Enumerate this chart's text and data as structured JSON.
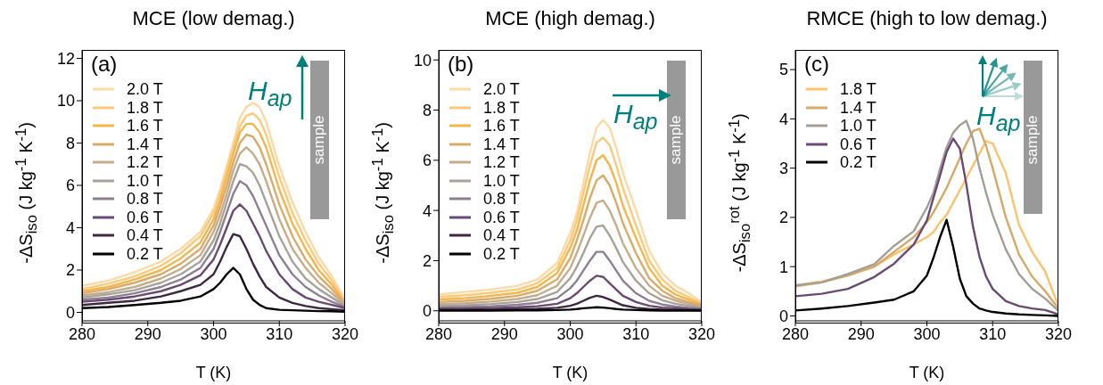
{
  "chart_data": [
    {
      "type": "line",
      "title": "MCE (low demag.)",
      "xlabel": "T (K)",
      "ylabel": "-ΔS$_{iso}$ (J kg$^{-1}$ K$^{-1}$)",
      "x": [
        280,
        284,
        288,
        292,
        295,
        298,
        300,
        301,
        302,
        303,
        304,
        305,
        306,
        307,
        308,
        310,
        312,
        314,
        316,
        318,
        320
      ],
      "xlim": [
        280,
        320
      ],
      "xticks": [
        280,
        290,
        300,
        310,
        320
      ],
      "ylim": [
        -0.4,
        12.4
      ],
      "yticks": [
        0,
        2,
        4,
        6,
        8,
        10,
        12
      ],
      "legend": "top left",
      "marker": "none",
      "line_style": "solid",
      "annotations": [
        "(a)",
        "H$_{ap}$",
        "sample"
      ],
      "series": [
        {
          "name": "2.0 T",
          "color": "#fdd9a6",
          "values": [
            1.25,
            1.5,
            1.9,
            2.4,
            3.0,
            3.8,
            4.9,
            5.8,
            6.9,
            8.0,
            9.2,
            9.7,
            9.9,
            9.7,
            9.0,
            6.9,
            5.2,
            3.8,
            2.6,
            1.7,
            0.6
          ]
        },
        {
          "name": "1.8 T",
          "color": "#fcc979",
          "values": [
            1.1,
            1.35,
            1.7,
            2.2,
            2.8,
            3.6,
            4.7,
            5.6,
            6.7,
            7.8,
            8.8,
            9.3,
            9.4,
            9.1,
            8.4,
            6.4,
            4.7,
            3.4,
            2.3,
            1.5,
            0.5
          ]
        },
        {
          "name": "1.6 T",
          "color": "#f5b54b",
          "values": [
            1.0,
            1.2,
            1.55,
            2.0,
            2.55,
            3.3,
            4.4,
            5.3,
            6.4,
            7.5,
            8.5,
            8.9,
            8.9,
            8.5,
            7.8,
            5.8,
            4.2,
            3.0,
            2.0,
            1.3,
            0.45
          ]
        },
        {
          "name": "1.4 T",
          "color": "#d9aa6a",
          "values": [
            0.9,
            1.1,
            1.4,
            1.8,
            2.3,
            3.0,
            4.1,
            5.0,
            6.0,
            7.1,
            8.0,
            8.4,
            8.3,
            7.8,
            7.0,
            5.1,
            3.6,
            2.5,
            1.7,
            1.1,
            0.4
          ]
        },
        {
          "name": "1.2 T",
          "color": "#c5ad8c",
          "values": [
            0.8,
            0.95,
            1.2,
            1.6,
            2.05,
            2.7,
            3.8,
            4.6,
            5.6,
            6.7,
            7.5,
            7.8,
            7.5,
            7.0,
            6.2,
            4.4,
            3.0,
            2.1,
            1.4,
            0.9,
            0.35
          ]
        },
        {
          "name": "1.0 T",
          "color": "#a8a39a",
          "values": [
            0.7,
            0.85,
            1.05,
            1.4,
            1.8,
            2.4,
            3.4,
            4.2,
            5.2,
            6.2,
            7.0,
            6.9,
            6.6,
            6.0,
            5.2,
            3.6,
            2.4,
            1.6,
            1.1,
            0.7,
            0.3
          ]
        },
        {
          "name": "0.8 T",
          "color": "#8c8090",
          "values": [
            0.6,
            0.7,
            0.9,
            1.2,
            1.55,
            2.1,
            3.0,
            3.8,
            4.7,
            5.6,
            6.2,
            6.0,
            5.5,
            4.8,
            4.1,
            2.7,
            1.8,
            1.2,
            0.8,
            0.5,
            0.25
          ]
        },
        {
          "name": "0.6 T",
          "color": "#6a4a75",
          "values": [
            0.5,
            0.6,
            0.75,
            1.0,
            1.3,
            1.75,
            2.5,
            3.2,
            4.0,
            4.8,
            5.1,
            4.8,
            4.2,
            3.6,
            2.9,
            1.8,
            1.1,
            0.7,
            0.5,
            0.35,
            0.2
          ]
        },
        {
          "name": "0.4 T",
          "color": "#3d2840",
          "values": [
            0.35,
            0.45,
            0.55,
            0.75,
            1.0,
            1.3,
            1.8,
            2.4,
            3.1,
            3.7,
            3.6,
            3.0,
            2.3,
            1.7,
            1.2,
            0.7,
            0.45,
            0.3,
            0.2,
            0.15,
            0.1
          ]
        },
        {
          "name": "0.2 T",
          "color": "#000000",
          "values": [
            0.2,
            0.25,
            0.35,
            0.45,
            0.55,
            0.75,
            1.1,
            1.4,
            1.8,
            2.1,
            1.8,
            1.1,
            0.6,
            0.35,
            0.2,
            0.12,
            0.1,
            0.08,
            0.06,
            0.05,
            0.03
          ]
        }
      ]
    },
    {
      "type": "line",
      "title": "MCE (high demag.)",
      "xlabel": "T (K)",
      "ylabel": "-ΔS$_{iso}$ (J kg$^{-1}$ K$^{-1}$)",
      "x": [
        280,
        284,
        288,
        292,
        295,
        298,
        300,
        301,
        302,
        303,
        304,
        305,
        306,
        307,
        308,
        310,
        312,
        314,
        316,
        318,
        320
      ],
      "xlim": [
        280,
        320
      ],
      "xticks": [
        280,
        290,
        300,
        310,
        320
      ],
      "ylim": [
        -0.4,
        10.4
      ],
      "yticks": [
        0,
        2,
        4,
        6,
        8,
        10
      ],
      "legend": "top left",
      "marker": "none",
      "line_style": "solid",
      "annotations": [
        "(b)",
        "H$_{ap}$",
        "sample"
      ],
      "series": [
        {
          "name": "2.0 T",
          "color": "#fdd9a6",
          "values": [
            0.65,
            0.75,
            0.85,
            1.0,
            1.25,
            1.9,
            3.1,
            3.9,
            5.1,
            6.3,
            7.3,
            7.6,
            7.3,
            6.5,
            5.5,
            4.0,
            2.4,
            1.5,
            1.0,
            0.7,
            0.35
          ]
        },
        {
          "name": "1.8 T",
          "color": "#fcc979",
          "values": [
            0.55,
            0.62,
            0.72,
            0.85,
            1.1,
            1.7,
            2.8,
            3.6,
            4.7,
            5.8,
            6.7,
            6.9,
            6.6,
            5.8,
            4.9,
            3.4,
            2.0,
            1.25,
            0.8,
            0.55,
            0.3
          ]
        },
        {
          "name": "1.6 T",
          "color": "#f5b54b",
          "values": [
            0.45,
            0.5,
            0.6,
            0.72,
            0.95,
            1.5,
            2.5,
            3.2,
            4.2,
            5.2,
            6.0,
            6.2,
            5.8,
            5.1,
            4.2,
            2.9,
            1.7,
            1.0,
            0.65,
            0.45,
            0.25
          ]
        },
        {
          "name": "1.4 T",
          "color": "#d9aa6a",
          "values": [
            0.35,
            0.4,
            0.48,
            0.6,
            0.8,
            1.25,
            2.1,
            2.8,
            3.6,
            4.5,
            5.2,
            5.4,
            5.0,
            4.3,
            3.5,
            2.3,
            1.3,
            0.8,
            0.5,
            0.35,
            0.2
          ]
        },
        {
          "name": "1.2 T",
          "color": "#c5ad8c",
          "values": [
            0.27,
            0.3,
            0.37,
            0.47,
            0.62,
            1.0,
            1.7,
            2.3,
            3.0,
            3.7,
            4.3,
            4.4,
            4.0,
            3.4,
            2.7,
            1.7,
            1.0,
            0.6,
            0.4,
            0.28,
            0.15
          ]
        },
        {
          "name": "1.0 T",
          "color": "#a8a39a",
          "values": [
            0.2,
            0.22,
            0.27,
            0.35,
            0.47,
            0.75,
            1.3,
            1.75,
            2.3,
            2.9,
            3.35,
            3.4,
            3.0,
            2.5,
            1.95,
            1.2,
            0.7,
            0.42,
            0.28,
            0.2,
            0.12
          ]
        },
        {
          "name": "0.8 T",
          "color": "#8c8090",
          "values": [
            0.13,
            0.15,
            0.18,
            0.24,
            0.32,
            0.5,
            0.9,
            1.2,
            1.6,
            2.0,
            2.35,
            2.35,
            2.0,
            1.6,
            1.2,
            0.7,
            0.4,
            0.25,
            0.17,
            0.12,
            0.08
          ]
        },
        {
          "name": "0.6 T",
          "color": "#6a4a75",
          "values": [
            0.08,
            0.09,
            0.11,
            0.14,
            0.18,
            0.28,
            0.5,
            0.7,
            0.95,
            1.2,
            1.4,
            1.35,
            1.1,
            0.85,
            0.6,
            0.35,
            0.2,
            0.13,
            0.1,
            0.07,
            0.05
          ]
        },
        {
          "name": "0.4 T",
          "color": "#3d2840",
          "values": [
            0.04,
            0.04,
            0.05,
            0.06,
            0.08,
            0.12,
            0.2,
            0.28,
            0.4,
            0.52,
            0.6,
            0.55,
            0.45,
            0.33,
            0.22,
            0.12,
            0.07,
            0.05,
            0.04,
            0.03,
            0.02
          ]
        },
        {
          "name": "0.2 T",
          "color": "#000000",
          "values": [
            0.01,
            0.01,
            0.01,
            0.02,
            0.02,
            0.03,
            0.05,
            0.07,
            0.1,
            0.12,
            0.14,
            0.13,
            0.1,
            0.07,
            0.05,
            0.03,
            0.02,
            0.01,
            0.01,
            0.01,
            0.01
          ]
        }
      ]
    },
    {
      "type": "line",
      "title": "RMCE (high to low demag.)",
      "xlabel": "T (K)",
      "ylabel": "-ΔS$_{iso}$$^{rot}$ (J kg$^{-1}$ K$^{-1}$)",
      "x": [
        280,
        284,
        288,
        292,
        295,
        298,
        300,
        301,
        302,
        303,
        304,
        305,
        306,
        307,
        308,
        309,
        310,
        312,
        314,
        316,
        318,
        320
      ],
      "xlim": [
        280,
        320
      ],
      "xticks": [
        280,
        290,
        300,
        310,
        320
      ],
      "ylim": [
        -0.1,
        5.4
      ],
      "yticks": [
        0,
        1,
        2,
        3,
        4,
        5
      ],
      "legend": "top left",
      "marker": "none",
      "line_style": "solid",
      "annotations": [
        "(c)",
        "H$_{ap}$",
        "sample"
      ],
      "series": [
        {
          "name": "1.8 T",
          "color": "#fcc36a",
          "values": [
            0.62,
            0.7,
            0.82,
            1.0,
            1.25,
            1.45,
            1.6,
            1.7,
            1.9,
            2.05,
            2.3,
            2.55,
            2.8,
            3.05,
            3.3,
            3.55,
            3.5,
            2.9,
            1.85,
            1.3,
            0.9,
            0.2
          ]
        },
        {
          "name": "1.4 T",
          "color": "#d8a866",
          "values": [
            0.6,
            0.68,
            0.82,
            1.0,
            1.3,
            1.6,
            1.9,
            2.1,
            2.35,
            2.6,
            2.9,
            3.2,
            3.5,
            3.75,
            3.8,
            3.45,
            3.0,
            2.0,
            1.25,
            0.8,
            0.5,
            0.15
          ]
        },
        {
          "name": "1.0 T",
          "color": "#a39f98",
          "values": [
            0.62,
            0.68,
            0.85,
            1.05,
            1.42,
            1.72,
            2.2,
            2.5,
            2.99,
            3.42,
            3.72,
            3.87,
            3.96,
            3.6,
            3.0,
            2.5,
            2.05,
            1.35,
            0.85,
            0.55,
            0.35,
            0.1
          ]
        },
        {
          "name": "0.6 T",
          "color": "#6a4a75",
          "values": [
            0.4,
            0.45,
            0.55,
            0.79,
            1.06,
            1.45,
            1.94,
            2.4,
            2.85,
            3.33,
            3.6,
            3.4,
            2.67,
            1.82,
            1.2,
            0.8,
            0.55,
            0.3,
            0.2,
            0.15,
            0.12,
            0.03
          ]
        },
        {
          "name": "0.2 T",
          "color": "#000000",
          "values": [
            0.11,
            0.15,
            0.2,
            0.27,
            0.33,
            0.5,
            0.82,
            1.18,
            1.6,
            1.95,
            1.4,
            0.76,
            0.4,
            0.25,
            0.15,
            0.11,
            0.08,
            0.05,
            0.03,
            0.02,
            0.01,
            0.0
          ]
        }
      ]
    }
  ]
}
